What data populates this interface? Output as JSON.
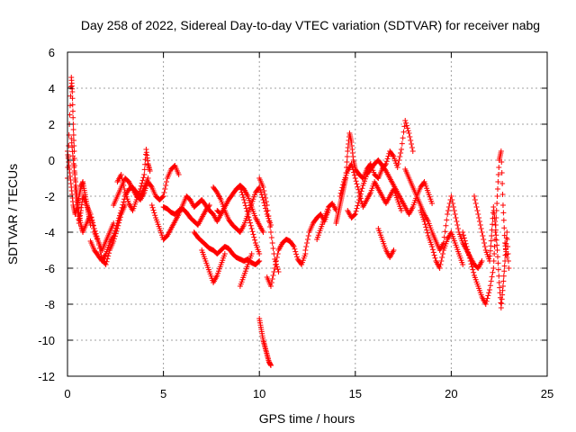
{
  "chart_data": {
    "type": "scatter",
    "title": "Day 258 of 2022, Sidereal Day-to-day VTEC variation (SDTVAR) for receiver nabg",
    "xlabel": "GPS time / hours",
    "ylabel": "SDTVAR / TECUs",
    "xlim": [
      0,
      25
    ],
    "ylim": [
      -12,
      6
    ],
    "xticks": [
      0,
      5,
      10,
      15,
      20,
      25
    ],
    "yticks": [
      -12,
      -10,
      -8,
      -6,
      -4,
      -2,
      0,
      2,
      4,
      6
    ],
    "grid": true,
    "marker": "+",
    "color": "#ff0000",
    "series": [
      {
        "name": "SDTVAR",
        "segments": [
          {
            "x": [
              0.0,
              0.1,
              0.2,
              0.25,
              0.3,
              0.35,
              0.4,
              0.5,
              0.6,
              0.7,
              0.8,
              1.0,
              1.2,
              1.4,
              1.6,
              1.8,
              2.0,
              2.2,
              2.4
            ],
            "y": [
              -1.0,
              2.0,
              4.6,
              3.8,
              2.0,
              0.5,
              -1.5,
              -2.5,
              -3.5,
              -2.8,
              -2.0,
              -2.5,
              -3.0,
              -4.0,
              -4.5,
              -5.0,
              -4.5,
              -4.0,
              -3.5
            ]
          },
          {
            "x": [
              0.2,
              0.3,
              0.4,
              0.5,
              0.6,
              0.7,
              0.8,
              1.0,
              1.2,
              1.4,
              1.6,
              1.8,
              2.0,
              2.2,
              2.4,
              2.6,
              2.8,
              3.0
            ],
            "y": [
              1.2,
              0.0,
              -1.0,
              -2.0,
              -3.0,
              -3.6,
              -4.0,
              -3.5,
              -3.0,
              -3.8,
              -4.5,
              -5.5,
              -5.8,
              -5.0,
              -4.5,
              -3.8,
              -3.0,
              -2.5
            ]
          },
          {
            "x": [
              0.0,
              0.1,
              0.2,
              0.3,
              0.4,
              0.5,
              0.6,
              0.7,
              0.8,
              0.9,
              1.0,
              1.1,
              1.2
            ],
            "y": [
              0.5,
              -0.5,
              -1.5,
              -2.5,
              -3.0,
              -2.6,
              -2.0,
              -1.5,
              -1.2,
              -1.8,
              -2.4,
              -3.0,
              -3.6
            ]
          },
          {
            "x": [
              1.2,
              1.4,
              1.6,
              1.8,
              2.0,
              2.2,
              2.4,
              2.6,
              2.8,
              3.0,
              3.2,
              3.4,
              3.6,
              3.8,
              4.0,
              4.2
            ],
            "y": [
              -4.5,
              -5.0,
              -5.3,
              -5.6,
              -5.2,
              -4.6,
              -4.2,
              -3.5,
              -2.8,
              -2.0,
              -1.6,
              -1.5,
              -1.8,
              -2.0,
              -1.5,
              -1.0
            ]
          },
          {
            "x": [
              2.4,
              2.6,
              2.8,
              3.0,
              3.2,
              3.4,
              3.6,
              3.8,
              4.0,
              4.2,
              4.4,
              4.6,
              4.8,
              5.0,
              5.2,
              5.4,
              5.6,
              5.8
            ],
            "y": [
              -2.5,
              -2.0,
              -1.5,
              -1.0,
              -1.2,
              -1.6,
              -2.0,
              -2.2,
              -1.8,
              -1.2,
              -1.5,
              -2.0,
              -2.2,
              -2.0,
              -1.0,
              -0.5,
              -0.3,
              -0.8
            ]
          },
          {
            "x": [
              2.6,
              2.8,
              3.0,
              3.2,
              3.4,
              3.6,
              3.8,
              4.0,
              4.1,
              4.2,
              4.3
            ],
            "y": [
              -1.2,
              -0.8,
              -1.8,
              -2.4,
              -2.8,
              -2.2,
              -1.6,
              -0.8,
              0.6,
              -0.2,
              -0.6
            ]
          },
          {
            "x": [
              4.4,
              4.6,
              4.8,
              5.0,
              5.2,
              5.4,
              5.6,
              5.8,
              6.0,
              6.2,
              6.4,
              6.6,
              6.8,
              7.0,
              7.2,
              7.4,
              7.6,
              7.8,
              8.0
            ],
            "y": [
              -2.5,
              -3.2,
              -3.8,
              -4.4,
              -4.2,
              -3.8,
              -3.4,
              -3.0,
              -2.5,
              -2.0,
              -2.2,
              -2.6,
              -2.4,
              -2.2,
              -2.5,
              -2.8,
              -3.0,
              -3.4,
              -3.0
            ]
          },
          {
            "x": [
              5.0,
              5.2,
              5.4,
              5.6,
              5.8,
              6.0,
              6.2,
              6.4,
              6.6,
              6.8,
              7.0,
              7.2,
              7.4
            ],
            "y": [
              -2.6,
              -2.7,
              -2.9,
              -3.0,
              -2.8,
              -2.7,
              -2.9,
              -3.2,
              -3.4,
              -3.6,
              -3.2,
              -2.8,
              -2.5
            ]
          },
          {
            "x": [
              6.6,
              6.8,
              7.0,
              7.2,
              7.4,
              7.6,
              7.8,
              8.0,
              8.2,
              8.4,
              8.6,
              8.8,
              9.0,
              9.2,
              9.4,
              9.6,
              9.8,
              10.0
            ],
            "y": [
              -4.0,
              -4.3,
              -4.5,
              -4.7,
              -4.9,
              -5.0,
              -5.2,
              -5.0,
              -4.8,
              -4.9,
              -5.2,
              -5.4,
              -5.5,
              -5.6,
              -5.5,
              -5.7,
              -5.8,
              -5.6
            ]
          },
          {
            "x": [
              7.0,
              7.2,
              7.4,
              7.6,
              7.8,
              8.0,
              8.2
            ],
            "y": [
              -5.0,
              -5.6,
              -6.2,
              -6.8,
              -6.4,
              -5.8,
              -5.2
            ]
          },
          {
            "x": [
              7.6,
              7.8,
              8.0,
              8.2,
              8.4,
              8.6,
              8.8,
              9.0,
              9.2,
              9.4,
              9.6,
              9.8,
              10.0,
              10.2,
              10.4,
              10.6
            ],
            "y": [
              -1.5,
              -1.8,
              -2.2,
              -2.8,
              -3.3,
              -3.6,
              -3.8,
              -4.0,
              -3.6,
              -3.0,
              -2.4,
              -1.8,
              -1.5,
              -2.2,
              -3.0,
              -3.6
            ]
          },
          {
            "x": [
              7.8,
              8.0,
              8.2,
              8.4,
              8.6,
              8.8,
              9.0,
              9.2,
              9.4,
              9.6,
              9.8,
              10.0,
              10.2
            ],
            "y": [
              -2.8,
              -3.0,
              -2.6,
              -2.2,
              -1.9,
              -1.6,
              -1.4,
              -1.6,
              -2.0,
              -2.6,
              -3.2,
              -3.6,
              -4.0
            ]
          },
          {
            "x": [
              9.0,
              9.2,
              9.4,
              9.6,
              9.8,
              10.0
            ],
            "y": [
              -1.5,
              -2.2,
              -3.0,
              -3.8,
              -4.6,
              -5.2
            ]
          },
          {
            "x": [
              9.0,
              9.2,
              9.4,
              9.6
            ],
            "y": [
              -7.0,
              -6.4,
              -5.8,
              -5.2
            ]
          },
          {
            "x": [
              10.0,
              10.1,
              10.2,
              10.3,
              10.4,
              10.5,
              10.6
            ],
            "y": [
              -8.8,
              -9.4,
              -10.0,
              -10.4,
              -10.8,
              -11.2,
              -11.4
            ]
          },
          {
            "x": [
              10.0,
              10.2,
              10.4,
              10.6,
              10.8,
              11.0
            ],
            "y": [
              -1.0,
              -1.5,
              -2.5,
              -4.0,
              -5.5,
              -6.2
            ]
          },
          {
            "x": [
              10.4,
              10.6,
              10.8,
              11.0,
              11.2,
              11.4,
              11.6,
              11.8,
              12.0,
              12.2,
              12.4
            ],
            "y": [
              -6.5,
              -7.0,
              -6.0,
              -5.0,
              -4.6,
              -4.4,
              -4.5,
              -4.8,
              -5.5,
              -5.8,
              -5.2
            ]
          },
          {
            "x": [
              12.4,
              12.6,
              12.8,
              13.0,
              13.2,
              13.4,
              13.6
            ],
            "y": [
              -5.0,
              -4.0,
              -3.5,
              -3.2,
              -3.0,
              -3.4,
              -2.8
            ]
          },
          {
            "x": [
              13.0,
              13.2,
              13.4,
              13.6,
              13.8,
              14.0
            ],
            "y": [
              -4.4,
              -3.8,
              -3.2,
              -2.6,
              -2.4,
              -2.8
            ]
          },
          {
            "x": [
              14.0,
              14.1,
              14.2,
              14.3,
              14.4,
              14.5,
              14.6,
              14.7,
              14.8,
              14.9,
              15.0,
              15.2,
              15.4,
              15.6,
              15.8,
              16.0,
              16.2,
              16.4,
              16.6,
              16.8,
              17.0,
              17.2,
              17.4,
              17.6,
              17.8,
              18.0
            ],
            "y": [
              -3.5,
              -3.0,
              -2.5,
              -2.0,
              -1.5,
              -1.0,
              0.5,
              1.5,
              1.0,
              0.0,
              -0.5,
              -0.8,
              -1.0,
              -0.5,
              -0.2,
              -0.8,
              -1.0,
              -0.5,
              -0.2,
              0.5,
              0.2,
              -0.4,
              0.6,
              2.2,
              1.5,
              0.5
            ]
          },
          {
            "x": [
              14.2,
              14.4,
              14.6,
              14.8,
              15.0,
              15.2,
              15.4,
              15.6,
              15.8,
              16.0,
              16.2,
              16.4,
              16.6,
              16.8,
              17.0,
              17.2,
              17.4
            ],
            "y": [
              -2.0,
              -1.2,
              -0.6,
              -0.2,
              -1.0,
              -1.8,
              -2.6,
              -2.2,
              -1.8,
              -1.2,
              -1.6,
              -2.0,
              -2.4,
              -2.0,
              -1.6,
              -2.2,
              -2.8
            ]
          },
          {
            "x": [
              14.6,
              14.8,
              15.0,
              15.2,
              15.4,
              15.6,
              15.8,
              16.0,
              16.2,
              16.4,
              16.6,
              16.8,
              17.0,
              17.2,
              17.4,
              17.6,
              17.8,
              18.0,
              18.2,
              18.4,
              18.6,
              18.8,
              19.0
            ],
            "y": [
              -2.8,
              -3.2,
              -3.0,
              -2.2,
              -1.4,
              -0.8,
              -0.5,
              -0.2,
              0.0,
              -0.3,
              -0.6,
              -1.0,
              -1.4,
              -1.8,
              -2.2,
              -2.6,
              -3.0,
              -2.6,
              -2.0,
              -1.5,
              -1.2,
              -1.8,
              -2.4
            ]
          },
          {
            "x": [
              16.2,
              16.4,
              16.6,
              16.8,
              17.0
            ],
            "y": [
              -3.8,
              -4.4,
              -5.0,
              -5.4,
              -5.0
            ]
          },
          {
            "x": [
              17.6,
              17.8,
              18.0,
              18.2,
              18.4,
              18.6,
              18.8,
              19.0,
              19.2,
              19.4,
              19.6,
              19.8,
              20.0,
              20.2,
              20.4,
              20.6,
              20.8,
              21.0,
              21.2,
              21.4,
              21.6
            ],
            "y": [
              -0.5,
              -1.0,
              -1.5,
              -2.0,
              -2.5,
              -3.0,
              -3.4,
              -4.0,
              -4.5,
              -5.0,
              -4.6,
              -3.0,
              -2.0,
              -3.0,
              -4.0,
              -4.6,
              -5.0,
              -5.4,
              -5.8,
              -6.0,
              -5.6
            ]
          },
          {
            "x": [
              18.4,
              18.6,
              18.8,
              19.0,
              19.2,
              19.4,
              19.6,
              19.8,
              20.0,
              20.2,
              20.4,
              20.6
            ],
            "y": [
              -2.8,
              -3.4,
              -4.2,
              -4.8,
              -5.6,
              -6.0,
              -5.0,
              -4.4,
              -4.0,
              -4.6,
              -5.2,
              -5.8
            ]
          },
          {
            "x": [
              20.6,
              20.8,
              21.0,
              21.2,
              21.4,
              21.6,
              21.8,
              22.0,
              22.2,
              22.3,
              22.4,
              22.5,
              22.6,
              22.7,
              22.8,
              22.9
            ],
            "y": [
              -4.0,
              -4.8,
              -5.6,
              -6.4,
              -7.0,
              -7.6,
              -8.0,
              -7.2,
              -6.0,
              -4.0,
              -2.0,
              0.0,
              0.5,
              -2.5,
              -4.6,
              -5.4
            ]
          },
          {
            "x": [
              21.2,
              21.4,
              21.6,
              21.8,
              22.0,
              22.1,
              22.2,
              22.3,
              22.4,
              22.5,
              22.6,
              22.7,
              22.8,
              22.9,
              23.0
            ],
            "y": [
              -2.0,
              -3.0,
              -4.0,
              -5.0,
              -5.6,
              -4.2,
              -2.6,
              -3.6,
              -5.0,
              -6.8,
              -8.2,
              -7.0,
              -5.6,
              -4.0,
              -6.0
            ]
          }
        ]
      }
    ]
  }
}
